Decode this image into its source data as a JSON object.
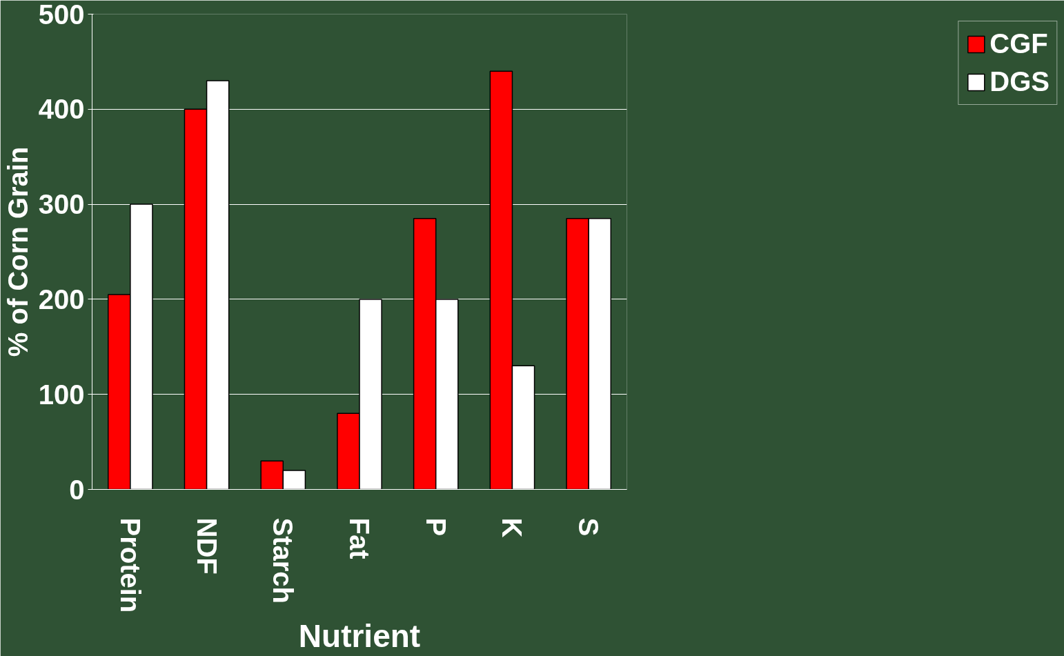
{
  "chart_data": {
    "type": "bar",
    "xlabel": "Nutrient",
    "ylabel": "% of Corn Grain",
    "categories": [
      "Protein",
      "NDF",
      "Starch",
      "Fat",
      "P",
      "K",
      "S"
    ],
    "series": [
      {
        "name": "CGF",
        "color": "#ff0000",
        "values": [
          205,
          400,
          30,
          80,
          285,
          440,
          285
        ]
      },
      {
        "name": "DGS",
        "color": "#ffffff",
        "values": [
          300,
          430,
          20,
          200,
          200,
          130,
          285
        ]
      }
    ],
    "ylim": [
      0,
      500
    ],
    "yticks": [
      0,
      100,
      200,
      300,
      400,
      500
    ],
    "grid": "y",
    "legend": "right"
  }
}
